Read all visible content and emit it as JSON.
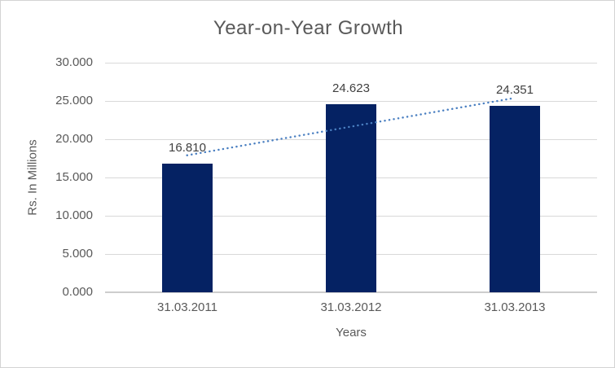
{
  "chart_data": {
    "type": "bar",
    "title": "Year-on-Year Growth",
    "xlabel": "Years",
    "ylabel": "Rs. In Millions",
    "categories": [
      "31.03.2011",
      "31.03.2012",
      "31.03.2013"
    ],
    "values": [
      16.81,
      24.623,
      24.351
    ],
    "value_labels": [
      "16.810",
      "24.623",
      "24.351"
    ],
    "ylim": [
      0,
      30
    ],
    "ytick_values": [
      0,
      5,
      10,
      15,
      20,
      25,
      30
    ],
    "ytick_labels": [
      "0.000",
      "5.000",
      "10.000",
      "15.000",
      "20.000",
      "25.000",
      "30.000"
    ],
    "grid": true,
    "legend": "none",
    "trendline": {
      "type": "linear",
      "style": "dotted",
      "start_y_value": 17.9,
      "end_y_value": 25.4
    },
    "colors": {
      "bar": "#052263",
      "trendline": "#4a7fc1",
      "gridline": "#d9d9d9",
      "axis_line": "#cdcdcd",
      "title_text": "#595959",
      "axis_text": "#595959",
      "data_label_text": "#404040",
      "border": "#d3d3d3",
      "background": "#ffffff"
    }
  }
}
